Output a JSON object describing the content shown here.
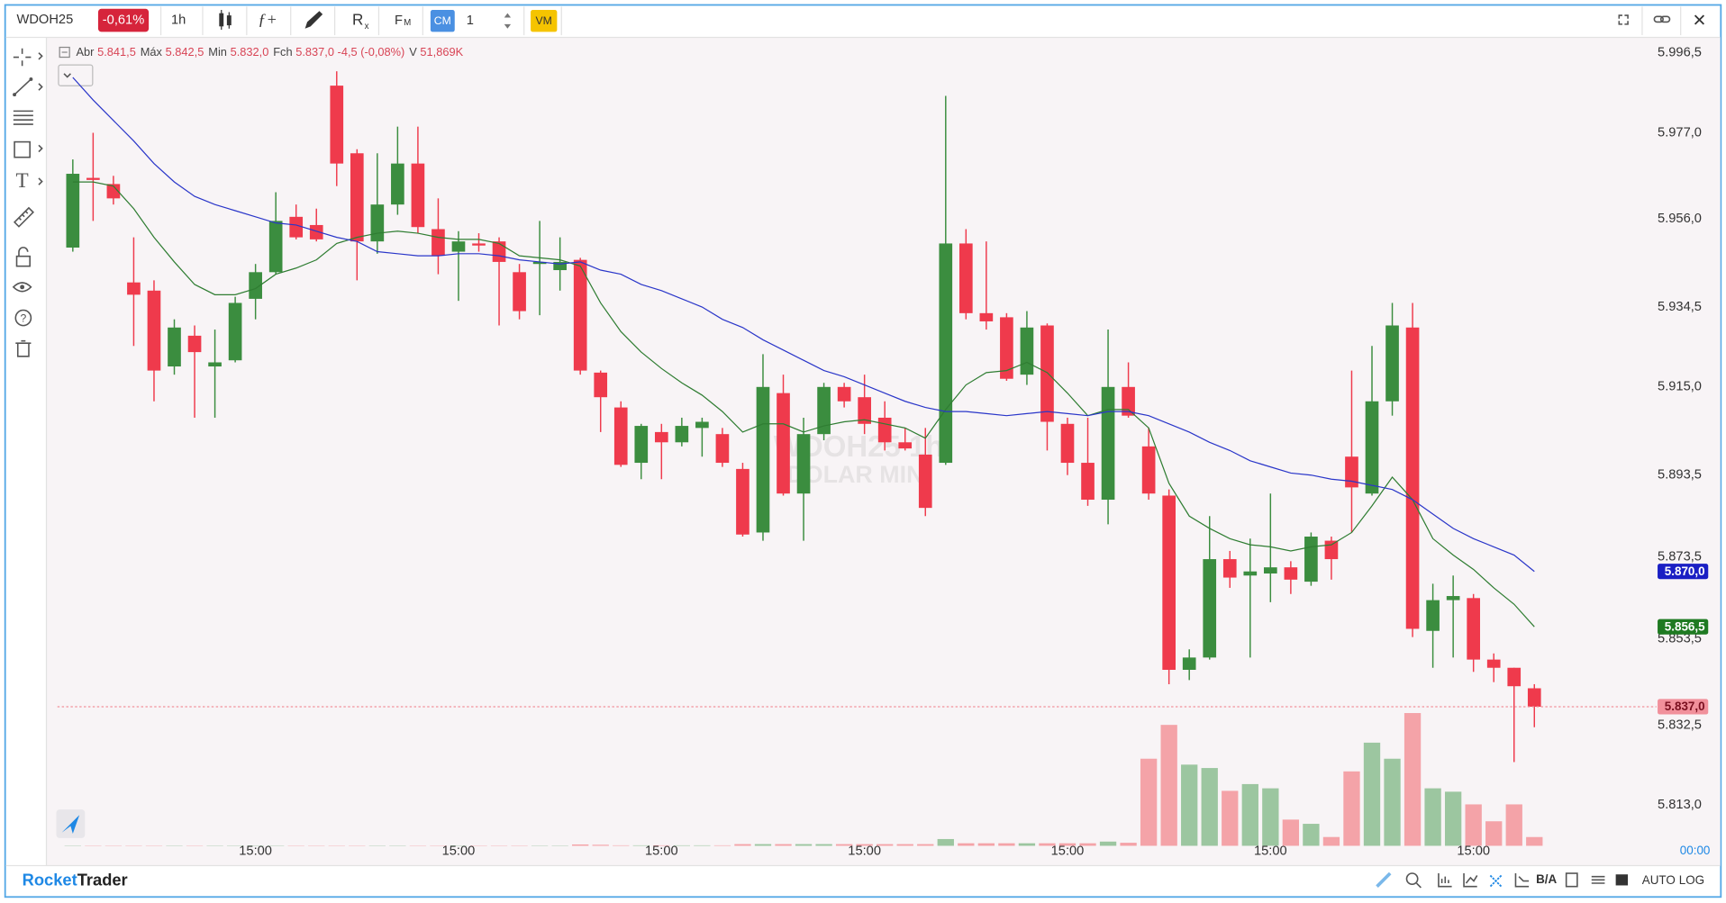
{
  "toolbar": {
    "symbol": "WDOH25",
    "change": "-0,61%",
    "interval": "1h",
    "cm": "CM",
    "quantity": "1",
    "vm": "VM"
  },
  "chart_data": {
    "type": "candlestick",
    "categories": [
      null,
      null,
      null,
      null,
      null,
      null,
      null,
      null,
      null,
      "15:00",
      null,
      null,
      null,
      null,
      null,
      null,
      null,
      null,
      null,
      "15:00",
      null,
      null,
      null,
      null,
      null,
      null,
      null,
      null,
      null,
      "15:00",
      null,
      null,
      null,
      null,
      null,
      null,
      null,
      null,
      null,
      "15:00",
      null,
      null,
      null,
      null,
      null,
      null,
      null,
      null,
      null,
      "15:00",
      null,
      null,
      null,
      null,
      null,
      null,
      null,
      null,
      null,
      "15:00",
      null,
      null,
      null,
      null,
      null,
      null,
      null,
      null,
      null,
      "15:00",
      null,
      null,
      null
    ],
    "open": [
      5949.0,
      5966.0,
      5964.5,
      5940.5,
      5938.5,
      5920.0,
      5927.5,
      5920.0,
      5921.5,
      5936.5,
      5943.0,
      5956.5,
      5954.5,
      5988.5,
      5972.0,
      5950.5,
      5959.5,
      5969.5,
      5953.5,
      5948.0,
      5950.0,
      5950.5,
      5943.0,
      5945.0,
      5943.5,
      5946.0,
      5918.5,
      5910.0,
      5896.5,
      5904.0,
      5901.5,
      5905.0,
      5903.5,
      5895.0,
      5879.5,
      5913.5,
      5889.0,
      5903.5,
      5915.0,
      5912.5,
      5907.5,
      5901.5,
      5898.5,
      5896.5,
      5950.0,
      5933.0,
      5932.0,
      5918.0,
      5930.0,
      5906.0,
      5896.5,
      5887.5,
      5915.0,
      5900.5,
      5888.5,
      5846.0,
      5849.0,
      5873.0,
      5869.0,
      5869.5,
      5871.0,
      5867.5,
      5877.5,
      5898.0,
      5889.0,
      5911.5,
      5929.5,
      5855.5,
      5863.0,
      5863.5,
      5848.5,
      5846.5,
      5841.5
    ],
    "high": [
      5970.5,
      5977.0,
      5966.5,
      5951.5,
      5941.0,
      5931.5,
      5930.0,
      5929.0,
      5937.0,
      5945.0,
      5962.5,
      5959.5,
      5958.5,
      5992.0,
      5973.0,
      5972.0,
      5978.5,
      5978.5,
      5961.0,
      5953.0,
      5952.5,
      5951.5,
      5945.0,
      5955.5,
      5951.5,
      5946.5,
      5919.0,
      5911.5,
      5906.0,
      5906.0,
      5907.5,
      5907.5,
      5905.0,
      5896.5,
      5923.0,
      5918.0,
      5907.5,
      5916.0,
      5916.0,
      5918.0,
      5911.5,
      5905.0,
      5905.0,
      5986.0,
      5953.5,
      5950.5,
      5933.0,
      5933.5,
      5930.5,
      5907.5,
      5907.5,
      5929.0,
      5921.0,
      5905.0,
      5890.0,
      5851.0,
      5883.5,
      5875.0,
      5878.0,
      5889.0,
      5872.5,
      5879.5,
      5878.5,
      5919.0,
      5925.0,
      5935.5,
      5935.5,
      5867.0,
      5869.0,
      5864.5,
      5850.0,
      5846.5,
      5842.5
    ],
    "low": [
      5948.0,
      5955.5,
      5959.5,
      5925.0,
      5911.5,
      5918.0,
      5907.5,
      5907.5,
      5921.0,
      5931.5,
      5942.5,
      5951.0,
      5950.5,
      5964.0,
      5941.0,
      5947.5,
      5957.0,
      5952.5,
      5942.5,
      5936.0,
      5948.0,
      5930.0,
      5931.5,
      5932.5,
      5938.5,
      5918.0,
      5904.0,
      5895.5,
      5892.5,
      5892.5,
      5900.5,
      5898.0,
      5895.5,
      5878.5,
      5877.5,
      5888.5,
      5877.5,
      5902.0,
      5910.0,
      5903.5,
      5899.5,
      5899.5,
      5883.5,
      5896.0,
      5931.5,
      5929.0,
      5916.5,
      5915.5,
      5899.5,
      5893.5,
      5886.0,
      5881.5,
      5907.5,
      5887.5,
      5842.5,
      5843.5,
      5848.5,
      5866.0,
      5849.0,
      5862.5,
      5864.5,
      5866.5,
      5868.0,
      5879.5,
      5888.5,
      5908.0,
      5854.0,
      5846.5,
      5849.0,
      5845.5,
      5843.0,
      5823.5,
      5832.0
    ],
    "close": [
      5967.0,
      5965.5,
      5961.0,
      5937.5,
      5919.0,
      5929.5,
      5923.5,
      5921.0,
      5935.5,
      5943.0,
      5955.5,
      5951.5,
      5951.0,
      5969.5,
      5950.5,
      5959.5,
      5969.5,
      5954.0,
      5947.0,
      5950.5,
      5949.5,
      5945.5,
      5933.5,
      5945.5,
      5945.5,
      5919.0,
      5912.5,
      5896.0,
      5905.5,
      5901.5,
      5905.5,
      5906.5,
      5896.5,
      5879.0,
      5915.0,
      5889.0,
      5903.5,
      5915.0,
      5911.5,
      5906.0,
      5901.5,
      5900.0,
      5885.5,
      5950.0,
      5933.0,
      5931.0,
      5917.0,
      5929.5,
      5906.5,
      5896.5,
      5887.5,
      5915.0,
      5908.0,
      5889.0,
      5846.0,
      5849.0,
      5873.0,
      5868.5,
      5870.0,
      5871.0,
      5868.0,
      5878.5,
      5873.0,
      5890.5,
      5911.5,
      5930.0,
      5856.0,
      5863.0,
      5864.0,
      5848.5,
      5846.5,
      5842.0,
      5837.0
    ],
    "volume": [
      2,
      2,
      2,
      2,
      2,
      2,
      2,
      2,
      2,
      2,
      2,
      2,
      2,
      2,
      2,
      2,
      2,
      2,
      2,
      2,
      2,
      2,
      2,
      2,
      2,
      8,
      6,
      3,
      3,
      3,
      3,
      3,
      3,
      10,
      10,
      10,
      10,
      10,
      10,
      10,
      10,
      10,
      10,
      40,
      15,
      15,
      15,
      15,
      15,
      15,
      15,
      25,
      18,
      515,
      715,
      480,
      460,
      325,
      365,
      340,
      155,
      130,
      52,
      440,
      610,
      515,
      785,
      340,
      320,
      245,
      145,
      245,
      51.869
    ],
    "vlim": [
      0,
      800
    ],
    "up_color": "#3b8d3f",
    "down_color": "#ef3a4c",
    "volume_up_color": "#9cc6a0",
    "volume_down_color": "#f4a3a8",
    "series": [
      {
        "color": "#2f7d32",
        "values": [
          5965.0,
          5965.0,
          5964.0,
          5958.5,
          5951.5,
          5945.5,
          5940.0,
          5937.5,
          5937.5,
          5939.0,
          5942.5,
          5944.0,
          5946.0,
          5950.0,
          5951.5,
          5952.5,
          5953.0,
          5952.5,
          5951.5,
          5951.0,
          5951.0,
          5950.0,
          5947.0,
          5946.5,
          5946.0,
          5944.5,
          5935.5,
          5928.5,
          5923.5,
          5919.5,
          5916.0,
          5913.0,
          5909.0,
          5904.0,
          5906.0,
          5906.0,
          5904.0,
          5905.5,
          5906.5,
          5907.0,
          5906.0,
          5905.0,
          5902.5,
          5909.5,
          5915.5,
          5918.5,
          5919.0,
          5921.0,
          5918.5,
          5913.5,
          5908.0,
          5909.5,
          5909.5,
          5905.0,
          5891.5,
          5883.5,
          5880.5,
          5878.0,
          5876.5,
          5876.0,
          5875.0,
          5876.0,
          5876.5,
          5879.5,
          5886.0,
          5893.0,
          5887.5,
          5878.0,
          5874.0,
          5870.5,
          5866.0,
          5862.0,
          5856.5
        ]
      },
      {
        "color": "#2a36c9",
        "values": [
          5990.5,
          5985.0,
          5980.0,
          5975.0,
          5969.5,
          5965.0,
          5961.5,
          5959.5,
          5958.0,
          5956.5,
          5955.0,
          5954.5,
          5953.0,
          5951.5,
          5950.5,
          5948.0,
          5947.5,
          5947.0,
          5947.0,
          5947.5,
          5947.5,
          5947.0,
          5946.0,
          5945.5,
          5945.0,
          5945.5,
          5943.5,
          5942.5,
          5940.0,
          5938.5,
          5936.5,
          5934.5,
          5931.5,
          5929.5,
          5926.5,
          5924.0,
          5921.5,
          5919.0,
          5917.5,
          5915.5,
          5913.5,
          5911.5,
          5910.0,
          5909.0,
          5909.0,
          5908.5,
          5908.0,
          5908.5,
          5909.0,
          5908.5,
          5908.0,
          5909.0,
          5909.0,
          5908.0,
          5906.0,
          5904.0,
          5901.5,
          5899.5,
          5897.0,
          5895.5,
          5894.0,
          5893.5,
          5892.5,
          5892.0,
          5891.0,
          5890.0,
          5887.5,
          5884.0,
          5880.5,
          5878.0,
          5876.0,
          5874.0,
          5870.0
        ]
      }
    ],
    "ylim": [
      5802,
      6000
    ],
    "yticks": [
      {
        "value": 5996.5,
        "label": "5.996,5"
      },
      {
        "value": 5977.0,
        "label": "5.977,0"
      },
      {
        "value": 5956.0,
        "label": "5.956,0"
      },
      {
        "value": 5934.5,
        "label": "5.934,5"
      },
      {
        "value": 5915.0,
        "label": "5.915,0"
      },
      {
        "value": 5893.5,
        "label": "5.893,5"
      },
      {
        "value": 5873.5,
        "label": "5.873,5"
      },
      {
        "value": 5853.5,
        "label": "5.853,5"
      },
      {
        "value": 5832.5,
        "label": "5.832,5"
      },
      {
        "value": 5813.0,
        "label": "5.813,0"
      }
    ],
    "grid": false,
    "legend": [
      {
        "label": "Abr",
        "value": "5.841,5"
      },
      {
        "label": "Máx",
        "value": "5.842,5"
      },
      {
        "label": "Min",
        "value": "5.832,0"
      },
      {
        "label": "Fch",
        "value": "5.837,0 -4,5 (-0,08%)"
      },
      {
        "label": "V",
        "value": "51,869K"
      }
    ],
    "price_tags": [
      {
        "value": 5870.0,
        "label": "5.870,0",
        "color": "#1a1fc4",
        "text_color": "#ffffff",
        "line": false
      },
      {
        "value": 5856.5,
        "label": "5.856,5",
        "color": "#1f7a22",
        "text_color": "#ffffff",
        "line": false
      },
      {
        "value": 5837.0,
        "label": "5.837,0",
        "color": "#f1909b",
        "text_color": "#7a1020",
        "line": true
      }
    ],
    "watermark": [
      "WDOH25 1h",
      "DOLAR MINI"
    ],
    "time_tag": "00:00"
  },
  "footer": {
    "brand_first": "Rocket",
    "brand_second": "Trader",
    "buttons": [
      "B/A",
      "AUTO",
      "LOG"
    ]
  }
}
